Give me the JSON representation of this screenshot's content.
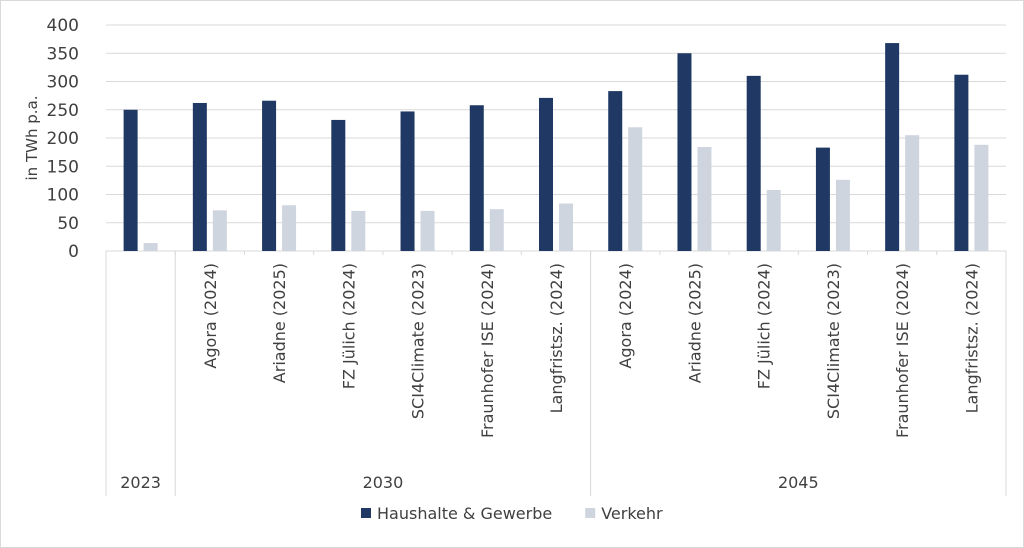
{
  "chart_data": {
    "type": "bar",
    "ylabel": "in TWh p.a.",
    "ylim": [
      0,
      400
    ],
    "yticks": [
      0,
      50,
      100,
      150,
      200,
      250,
      300,
      350,
      400
    ],
    "grid": true,
    "legend_position": "bottom",
    "colors": {
      "Haushalte & Gewerbe": "#1f3864",
      "Verkehr": "#cfd5df"
    },
    "groups": [
      {
        "label": "2023",
        "categories": [
          ""
        ]
      },
      {
        "label": "2030",
        "categories": [
          "Agora (2024)",
          "Ariadne (2025)",
          "FZ Jülich (2024)",
          "SCI4Climate (2023)",
          "Fraunhofer ISE (2024)",
          "Langfristsz. (2024)"
        ]
      },
      {
        "label": "2045",
        "categories": [
          "Agora (2024)",
          "Ariadne (2025)",
          "FZ Jülich (2024)",
          "SCI4Climate (2023)",
          "Fraunhofer ISE (2024)",
          "Langfristsz. (2024)"
        ]
      }
    ],
    "series": [
      {
        "name": "Haushalte & Gewerbe",
        "values": [
          250,
          262,
          266,
          232,
          247,
          258,
          271,
          283,
          350,
          310,
          183,
          368,
          312
        ]
      },
      {
        "name": "Verkehr",
        "values": [
          14,
          72,
          81,
          71,
          71,
          74,
          84,
          219,
          184,
          108,
          126,
          205,
          188
        ]
      }
    ]
  }
}
